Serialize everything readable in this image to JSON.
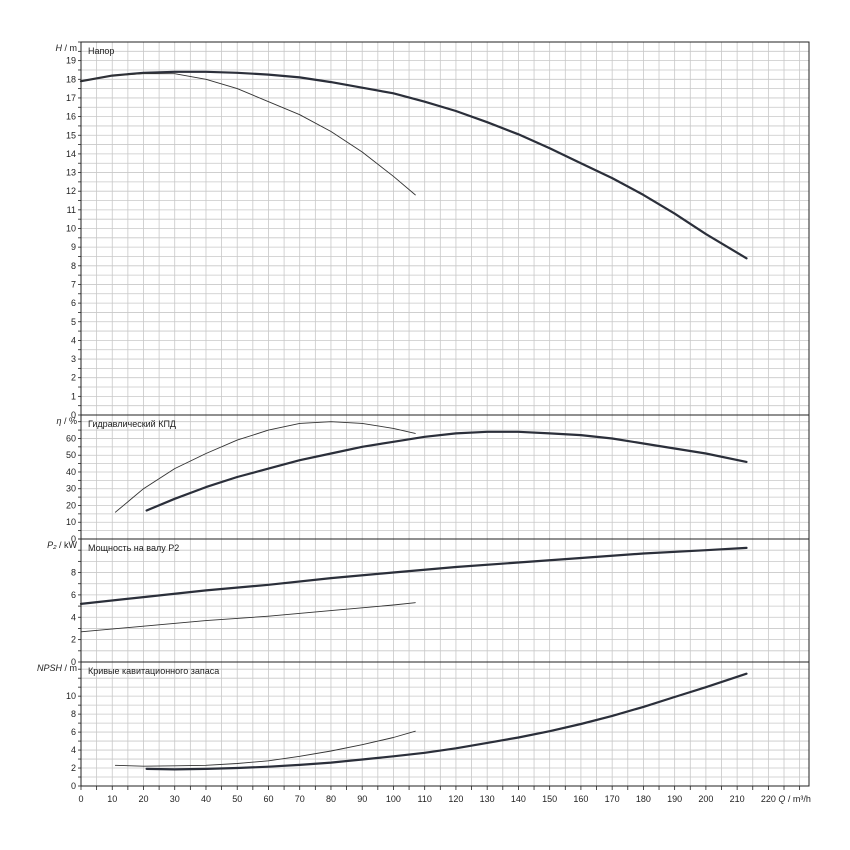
{
  "chart_data": {
    "type": "line",
    "x_axis": {
      "label_symbol": "Q",
      "label_unit": "m³/h",
      "range": [
        0,
        233
      ],
      "ticks": [
        "0",
        "10",
        "20",
        "30",
        "40",
        "50",
        "60",
        "70",
        "80",
        "90",
        "100",
        "110",
        "120",
        "130",
        "140",
        "150",
        "160",
        "170",
        "180",
        "190",
        "200",
        "210",
        "220"
      ]
    },
    "grid": "on",
    "panels": [
      {
        "id": "head",
        "title": "Напор",
        "ylabel_symbol": "H",
        "ylabel_unit": "m",
        "ylim": [
          0,
          20
        ],
        "ticks": [
          "0",
          "1",
          "2",
          "3",
          "4",
          "5",
          "6",
          "7",
          "8",
          "9",
          "10",
          "11",
          "12",
          "13",
          "14",
          "15",
          "16",
          "17",
          "18",
          "19"
        ],
        "series": [
          {
            "style": "thick",
            "x": [
              0,
              10,
              20,
              30,
              40,
              50,
              60,
              70,
              80,
              90,
              100,
              110,
              120,
              130,
              140,
              150,
              160,
              170,
              180,
              190,
              200,
              213
            ],
            "y": [
              17.9,
              18.2,
              18.35,
              18.4,
              18.4,
              18.35,
              18.25,
              18.1,
              17.85,
              17.55,
              17.25,
              16.8,
              16.3,
              15.7,
              15.05,
              14.3,
              13.5,
              12.7,
              11.8,
              10.8,
              9.7,
              8.4
            ]
          },
          {
            "style": "thin",
            "x": [
              0,
              10,
              20,
              30,
              40,
              50,
              60,
              70,
              80,
              90,
              100,
              107
            ],
            "y": [
              17.9,
              18.2,
              18.3,
              18.3,
              18.0,
              17.5,
              16.8,
              16.1,
              15.2,
              14.1,
              12.8,
              11.8
            ]
          }
        ]
      },
      {
        "id": "efficiency",
        "title": "Гидравлический КПД",
        "ylabel_symbol": "η",
        "ylabel_unit": "%",
        "ylim": [
          0,
          74
        ],
        "ticks": [
          "0",
          "10",
          "20",
          "30",
          "40",
          "50",
          "60"
        ],
        "series": [
          {
            "style": "thick",
            "x": [
              21,
              30,
              40,
              50,
              60,
              70,
              80,
              90,
              100,
              110,
              120,
              130,
              140,
              150,
              160,
              170,
              180,
              190,
              200,
              213
            ],
            "y": [
              17,
              24,
              31,
              37,
              42,
              47,
              51,
              55,
              58,
              61,
              63,
              64,
              64,
              63,
              62,
              60,
              57,
              54,
              51,
              46
            ]
          },
          {
            "style": "thin",
            "x": [
              11,
              20,
              30,
              40,
              50,
              60,
              70,
              80,
              90,
              100,
              107
            ],
            "y": [
              16,
              30,
              42,
              51,
              59,
              65,
              69,
              70,
              69,
              66,
              63
            ]
          }
        ]
      },
      {
        "id": "power",
        "title": "Мощность на валу P2",
        "ylabel_symbol": "P₂",
        "ylabel_unit": "kW",
        "ylim": [
          0,
          11
        ],
        "ticks": [
          "0",
          "2",
          "4",
          "6",
          "8"
        ],
        "series": [
          {
            "style": "thick",
            "x": [
              0,
              20,
              40,
              60,
              80,
              100,
              120,
              140,
              160,
              180,
              200,
              213
            ],
            "y": [
              5.2,
              5.8,
              6.4,
              6.9,
              7.5,
              8.0,
              8.5,
              8.9,
              9.3,
              9.7,
              10.0,
              10.2
            ]
          },
          {
            "style": "thin",
            "x": [
              0,
              20,
              40,
              60,
              80,
              100,
              107
            ],
            "y": [
              2.7,
              3.2,
              3.7,
              4.1,
              4.6,
              5.1,
              5.3
            ]
          }
        ]
      },
      {
        "id": "npsh",
        "title": "Кривые кавитационного запаса",
        "ylabel_symbol": "NPSH",
        "ylabel_unit": "m",
        "ylim": [
          0,
          13.8
        ],
        "ticks": [
          "0",
          "2",
          "4",
          "6",
          "8",
          "10"
        ],
        "series": [
          {
            "style": "thick",
            "x": [
              21,
              30,
              40,
              50,
              60,
              70,
              80,
              90,
              100,
              110,
              120,
              130,
              140,
              150,
              160,
              170,
              180,
              190,
              200,
              213
            ],
            "y": [
              1.9,
              1.85,
              1.9,
              2.0,
              2.15,
              2.35,
              2.6,
              2.95,
              3.3,
              3.7,
              4.2,
              4.8,
              5.4,
              6.1,
              6.9,
              7.8,
              8.8,
              9.9,
              11.0,
              12.5
            ]
          },
          {
            "style": "thin",
            "x": [
              11,
              20,
              30,
              40,
              50,
              60,
              70,
              80,
              90,
              100,
              107
            ],
            "y": [
              2.3,
              2.2,
              2.25,
              2.3,
              2.5,
              2.8,
              3.3,
              3.9,
              4.6,
              5.4,
              6.1
            ]
          }
        ]
      }
    ]
  }
}
